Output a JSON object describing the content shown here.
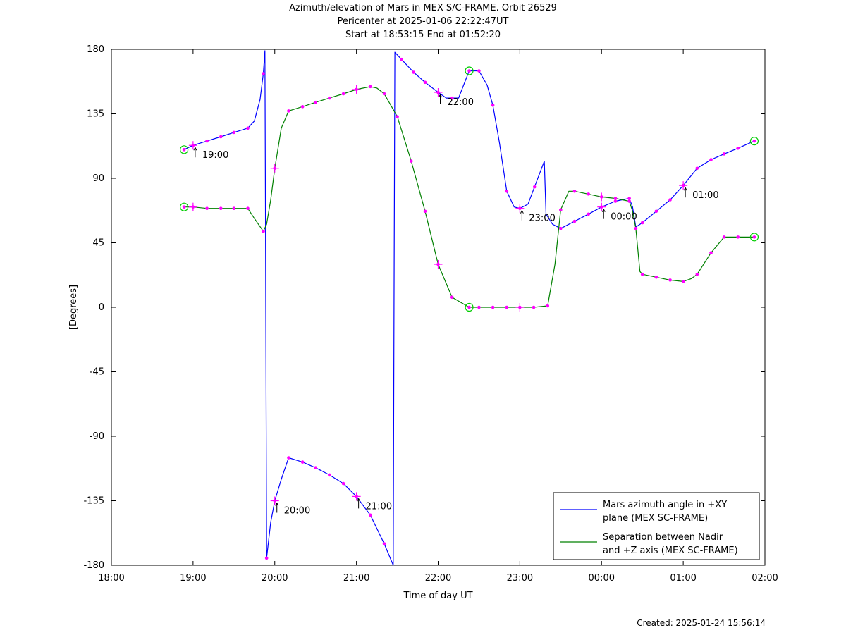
{
  "chart_data": {
    "type": "line",
    "title": "Azimuth/elevation of Mars in MEX S/C-FRAME.  Orbit 26529",
    "subtitle_lines": [
      "Pericenter at 2025-01-06 22:22:47UT",
      "Start at 18:53:15 End at 01:52:20"
    ],
    "xlabel": "Time of day UT",
    "ylabel": "[Degrees]",
    "xlim": [
      18,
      26
    ],
    "ylim": [
      -180,
      180
    ],
    "x_ticks": [
      18,
      19,
      20,
      21,
      22,
      23,
      24,
      25,
      26
    ],
    "x_tick_labels": [
      "18:00",
      "19:00",
      "20:00",
      "21:00",
      "22:00",
      "23:00",
      "00:00",
      "01:00",
      "02:00"
    ],
    "y_ticks": [
      -180,
      -135,
      -90,
      -45,
      0,
      45,
      90,
      135,
      180
    ],
    "y_tick_labels": [
      "-180",
      "-135",
      "-90",
      "-45",
      "0",
      "45",
      "90",
      "135",
      "180"
    ],
    "legend_position": "bottom-right",
    "grid": false,
    "series": [
      {
        "name": "Mars azimuth angle in +XY plane (MEX SC-FRAME)",
        "legend_lines": [
          "Mars azimuth angle in +XY",
          "plane (MEX SC-FRAME)"
        ],
        "color": "#0000ff",
        "points": [
          [
            18.89,
            110
          ],
          [
            19.0,
            113
          ],
          [
            19.17,
            116
          ],
          [
            19.34,
            119
          ],
          [
            19.5,
            122
          ],
          [
            19.67,
            125
          ],
          [
            19.75,
            130
          ],
          [
            19.82,
            145
          ],
          [
            19.86,
            163
          ],
          [
            19.88,
            179
          ],
          [
            19.89,
            0
          ],
          [
            19.9,
            -175
          ],
          [
            19.95,
            -150
          ],
          [
            20.0,
            -135
          ],
          [
            20.08,
            -120
          ],
          [
            20.17,
            -105
          ],
          [
            20.34,
            -108
          ],
          [
            20.5,
            -112
          ],
          [
            20.67,
            -117
          ],
          [
            20.84,
            -123
          ],
          [
            21.0,
            -132
          ],
          [
            21.17,
            -145
          ],
          [
            21.34,
            -165
          ],
          [
            21.45,
            -180
          ],
          [
            21.46,
            0
          ],
          [
            21.47,
            178
          ],
          [
            21.55,
            173
          ],
          [
            21.7,
            164
          ],
          [
            21.84,
            157
          ],
          [
            22.0,
            150
          ],
          [
            22.1,
            146
          ],
          [
            22.25,
            146
          ],
          [
            22.38,
            165
          ],
          [
            22.5,
            165
          ],
          [
            22.6,
            155
          ],
          [
            22.67,
            141
          ],
          [
            22.75,
            115
          ],
          [
            22.84,
            81
          ],
          [
            22.93,
            70
          ],
          [
            23.0,
            69
          ],
          [
            23.1,
            72
          ],
          [
            23.18,
            84
          ],
          [
            23.3,
            102
          ],
          [
            23.32,
            65
          ],
          [
            23.4,
            58
          ],
          [
            23.5,
            55
          ],
          [
            23.67,
            60
          ],
          [
            23.84,
            65
          ],
          [
            24.0,
            70
          ],
          [
            24.17,
            74
          ],
          [
            24.34,
            76
          ],
          [
            24.38,
            70
          ],
          [
            24.42,
            56
          ],
          [
            24.5,
            59
          ],
          [
            24.67,
            67
          ],
          [
            24.84,
            75
          ],
          [
            25.0,
            85
          ],
          [
            25.17,
            97
          ],
          [
            25.34,
            103
          ],
          [
            25.5,
            107
          ],
          [
            25.67,
            111
          ],
          [
            25.87,
            116
          ]
        ],
        "markers_x": [
          18.89,
          19.0,
          19.17,
          19.34,
          19.5,
          19.67,
          19.86,
          19.9,
          20.0,
          20.17,
          20.34,
          20.5,
          20.67,
          20.84,
          21.0,
          21.17,
          21.34,
          21.55,
          21.7,
          21.84,
          22.0,
          22.17,
          22.38,
          22.5,
          22.67,
          22.84,
          23.0,
          23.18,
          23.5,
          23.67,
          23.84,
          24.0,
          24.17,
          24.34,
          24.5,
          24.67,
          24.84,
          25.0,
          25.17,
          25.34,
          25.5,
          25.67,
          25.87
        ]
      },
      {
        "name": "Separation between Nadir and +Z axis (MEX SC-FRAME)",
        "legend_lines": [
          "Separation between Nadir",
          "and +Z axis (MEX SC-FRAME)"
        ],
        "color": "#008000",
        "points": [
          [
            18.89,
            70
          ],
          [
            19.0,
            70
          ],
          [
            19.17,
            69
          ],
          [
            19.34,
            69
          ],
          [
            19.5,
            69
          ],
          [
            19.67,
            69
          ],
          [
            19.75,
            62
          ],
          [
            19.86,
            53
          ],
          [
            19.9,
            58
          ],
          [
            19.95,
            75
          ],
          [
            20.0,
            97
          ],
          [
            20.08,
            125
          ],
          [
            20.17,
            137
          ],
          [
            20.34,
            140
          ],
          [
            20.5,
            143
          ],
          [
            20.67,
            146
          ],
          [
            20.84,
            149
          ],
          [
            21.0,
            152
          ],
          [
            21.17,
            154
          ],
          [
            21.25,
            153
          ],
          [
            21.34,
            149
          ],
          [
            21.5,
            133
          ],
          [
            21.67,
            102
          ],
          [
            21.84,
            67
          ],
          [
            22.0,
            30
          ],
          [
            22.17,
            7
          ],
          [
            22.38,
            0
          ],
          [
            22.5,
            0
          ],
          [
            22.67,
            0
          ],
          [
            22.84,
            0
          ],
          [
            23.0,
            0
          ],
          [
            23.17,
            0
          ],
          [
            23.34,
            1
          ],
          [
            23.43,
            30
          ],
          [
            23.5,
            68
          ],
          [
            23.6,
            81
          ],
          [
            23.67,
            81
          ],
          [
            23.84,
            79
          ],
          [
            24.0,
            77
          ],
          [
            24.17,
            76
          ],
          [
            24.34,
            74
          ],
          [
            24.38,
            67
          ],
          [
            24.42,
            55
          ],
          [
            24.47,
            25
          ],
          [
            24.5,
            23
          ],
          [
            24.67,
            21
          ],
          [
            24.84,
            19
          ],
          [
            25.0,
            18
          ],
          [
            25.1,
            20
          ],
          [
            25.17,
            23
          ],
          [
            25.34,
            38
          ],
          [
            25.5,
            49
          ],
          [
            25.67,
            49
          ],
          [
            25.87,
            49
          ]
        ],
        "markers_x": [
          18.89,
          19.0,
          19.17,
          19.34,
          19.5,
          19.67,
          19.86,
          20.0,
          20.17,
          20.34,
          20.5,
          20.67,
          20.84,
          21.0,
          21.17,
          21.34,
          21.5,
          21.67,
          21.84,
          22.0,
          22.17,
          22.38,
          22.5,
          22.67,
          22.84,
          23.0,
          23.17,
          23.34,
          23.5,
          23.67,
          23.84,
          24.0,
          24.17,
          24.34,
          24.42,
          24.5,
          24.67,
          24.84,
          25.0,
          25.17,
          25.34,
          25.5,
          25.67,
          25.87
        ]
      }
    ],
    "marker_color": "#ff00ff",
    "circle_marker_color": "#00cc00",
    "hour_annotations": [
      {
        "label": "19:00",
        "x": 19.0,
        "y": 113
      },
      {
        "label": "20:00",
        "x": 20.0,
        "y": -135
      },
      {
        "label": "21:00",
        "x": 21.0,
        "y": -132
      },
      {
        "label": "22:00",
        "x": 22.0,
        "y": 150
      },
      {
        "label": "23:00",
        "x": 23.0,
        "y": 69
      },
      {
        "label": "00:00",
        "x": 24.0,
        "y": 70
      },
      {
        "label": "01:00",
        "x": 25.0,
        "y": 85
      }
    ],
    "circle_markers": [
      [
        18.89,
        110
      ],
      [
        18.89,
        70
      ],
      [
        22.38,
        165
      ],
      [
        22.38,
        0
      ],
      [
        25.87,
        116
      ],
      [
        25.87,
        49
      ]
    ],
    "cross_markers": [
      [
        19.0,
        70
      ],
      [
        20.0,
        97
      ],
      [
        21.0,
        152
      ],
      [
        22.0,
        30
      ],
      [
        23.0,
        0
      ],
      [
        24.0,
        77
      ]
    ]
  },
  "footer": {
    "created": "Created: 2025-01-24 15:56:14"
  }
}
